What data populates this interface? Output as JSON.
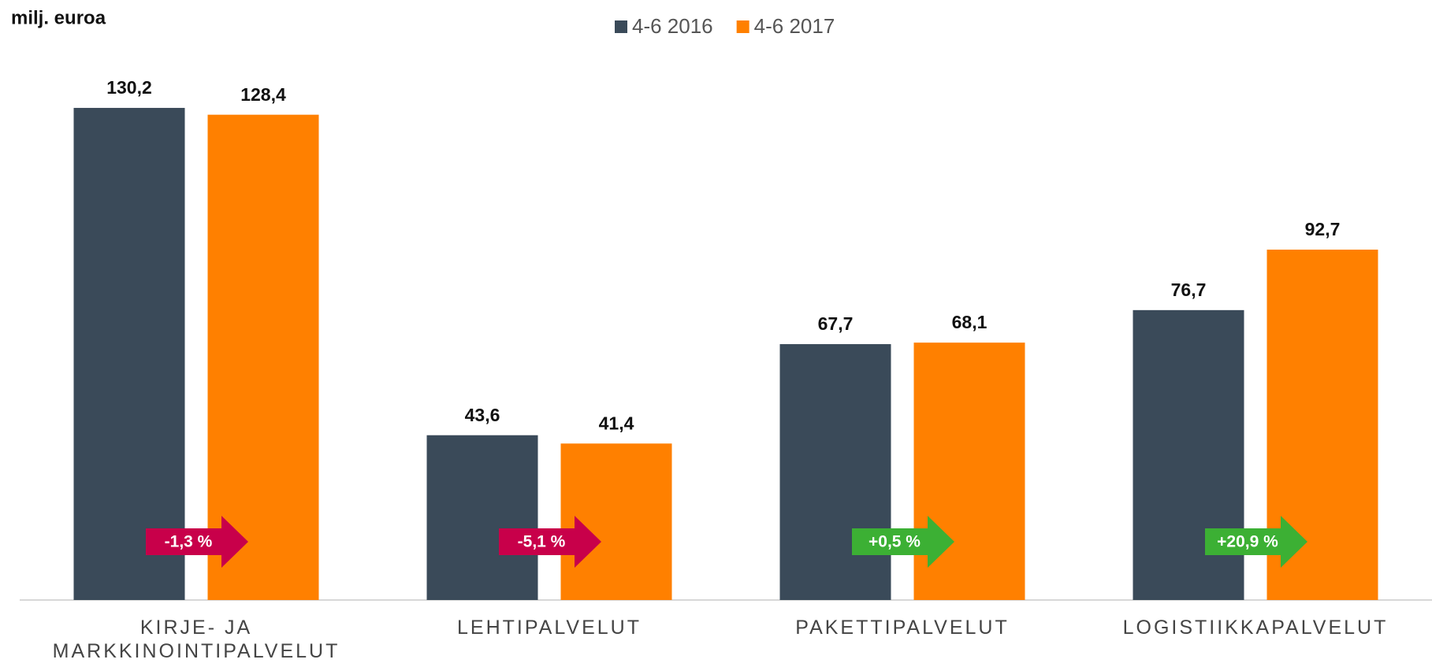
{
  "chart_data": {
    "type": "bar",
    "title": "milj. euroa",
    "categories": [
      "KIRJE- JA MARKKINOINTIPALVELUT",
      "LEHTIPALVELUT",
      "PAKETTIPALVELUT",
      "LOGISTIIKKAPALVELUT"
    ],
    "series": [
      {
        "name": "4-6 2016",
        "color": "#3a4a59",
        "values": [
          130.2,
          43.6,
          67.7,
          76.7
        ],
        "value_labels": [
          "130,2",
          "43,6",
          "67,7",
          "76,7"
        ]
      },
      {
        "name": "4-6 2017",
        "color": "#ff8000",
        "values": [
          128.4,
          41.4,
          68.1,
          92.7
        ],
        "value_labels": [
          "128,4",
          "41,4",
          "68,1",
          "92,7"
        ]
      }
    ],
    "annotations": [
      {
        "label": "-1,3 %",
        "color": "#c8004a"
      },
      {
        "label": "-5,1 %",
        "color": "#c8004a"
      },
      {
        "label": "+0,5 %",
        "color": "#3cb034"
      },
      {
        "label": "+20,9 %",
        "color": "#3cb034"
      }
    ],
    "ylim": [
      0,
      140
    ]
  }
}
